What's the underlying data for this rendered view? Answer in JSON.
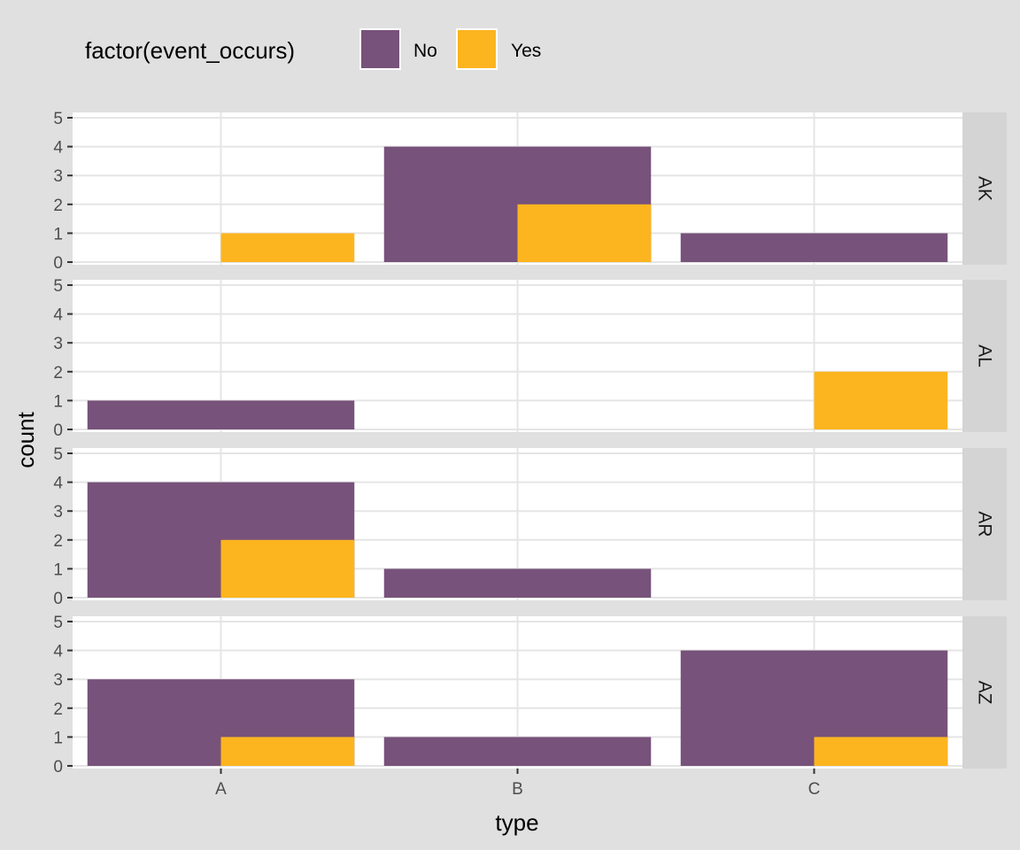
{
  "chart_data": {
    "type": "bar",
    "facet_orientation": "rows",
    "facets": [
      "AK",
      "AL",
      "AR",
      "AZ"
    ],
    "categories": [
      "A",
      "B",
      "C"
    ],
    "bar_position": "overlap-dodge",
    "series": [
      {
        "name": "No",
        "color": "#77527a",
        "values": {
          "AK": [
            0,
            4,
            1
          ],
          "AL": [
            1,
            0,
            0
          ],
          "AR": [
            4,
            1,
            0
          ],
          "AZ": [
            3,
            1,
            4
          ]
        }
      },
      {
        "name": "Yes",
        "color": "#fcb51f",
        "values": {
          "AK": [
            1,
            2,
            0
          ],
          "AL": [
            0,
            0,
            2
          ],
          "AR": [
            2,
            0,
            0
          ],
          "AZ": [
            1,
            0,
            1
          ]
        }
      }
    ],
    "xlabel": "type",
    "ylabel": "count",
    "yticks": [
      0,
      1,
      2,
      3,
      4,
      5
    ],
    "ylim": [
      0,
      5
    ],
    "legend": {
      "title": "factor(event_occurs)",
      "position": "top-left",
      "labels": [
        "No",
        "Yes"
      ]
    },
    "grid": true
  }
}
